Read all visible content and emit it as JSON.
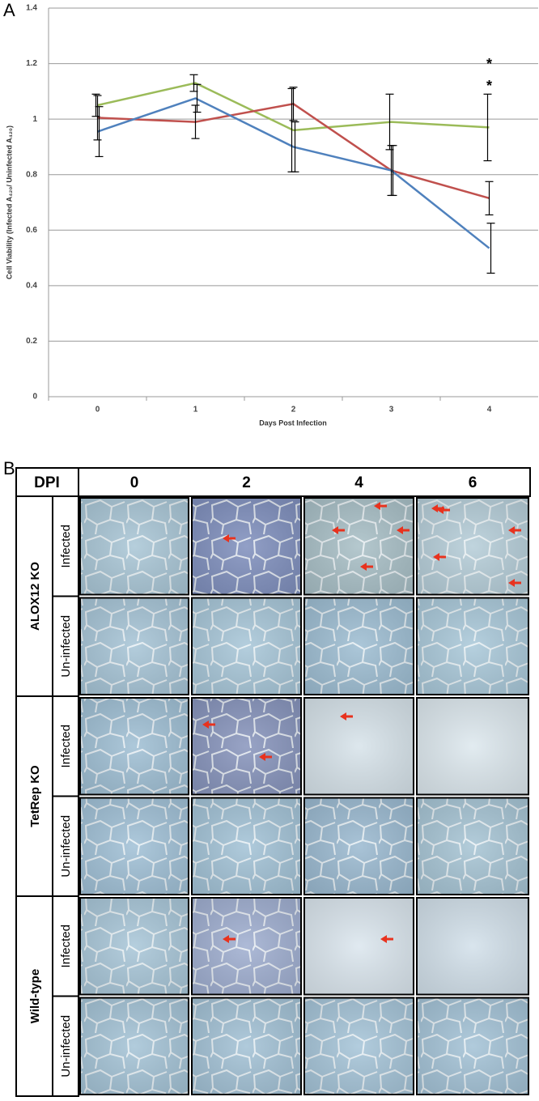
{
  "chart_data": {
    "type": "line",
    "panel_label": "A",
    "y_label": "Cell Viability (Infected A₄₂₀/ Uninfected A₄₂₀)",
    "x_label": "Days Post Infection",
    "categories": [
      "0",
      "1",
      "2",
      "3",
      "4"
    ],
    "ylim": [
      0,
      1.4
    ],
    "yticks": [
      0,
      0.2,
      0.4,
      0.6,
      0.8,
      1,
      1.2,
      1.4
    ],
    "grid": true,
    "series": [
      {
        "color": "#9bbb59",
        "values": [
          1.05,
          1.13,
          0.96,
          0.99,
          0.97
        ],
        "errors": [
          0.04,
          0.03,
          0.15,
          0.1,
          0.12
        ]
      },
      {
        "color": "#c0504d",
        "values": [
          1.005,
          0.99,
          1.055,
          0.815,
          0.715
        ],
        "errors": [
          0.08,
          0.06,
          0.06,
          0.09,
          0.06
        ]
      },
      {
        "color": "#4f81bd",
        "values": [
          0.955,
          1.075,
          0.9,
          0.815,
          0.535
        ],
        "errors": [
          0.09,
          0.05,
          0.09,
          0.09,
          0.09
        ]
      }
    ],
    "annotations": [
      "*",
      "*"
    ]
  },
  "panel_b": {
    "label": "B",
    "header": "DPI",
    "columns": [
      "0",
      "2",
      "4",
      "6"
    ],
    "groups": [
      {
        "label": "ALOX12 KO",
        "rows": [
          "Infected",
          "Un-infected"
        ]
      },
      {
        "label": "TetRep KO",
        "rows": [
          "Infected",
          "Un-infected"
        ]
      },
      {
        "label": "Wild-type",
        "rows": [
          "Infected",
          "Un-infected"
        ]
      }
    ]
  }
}
